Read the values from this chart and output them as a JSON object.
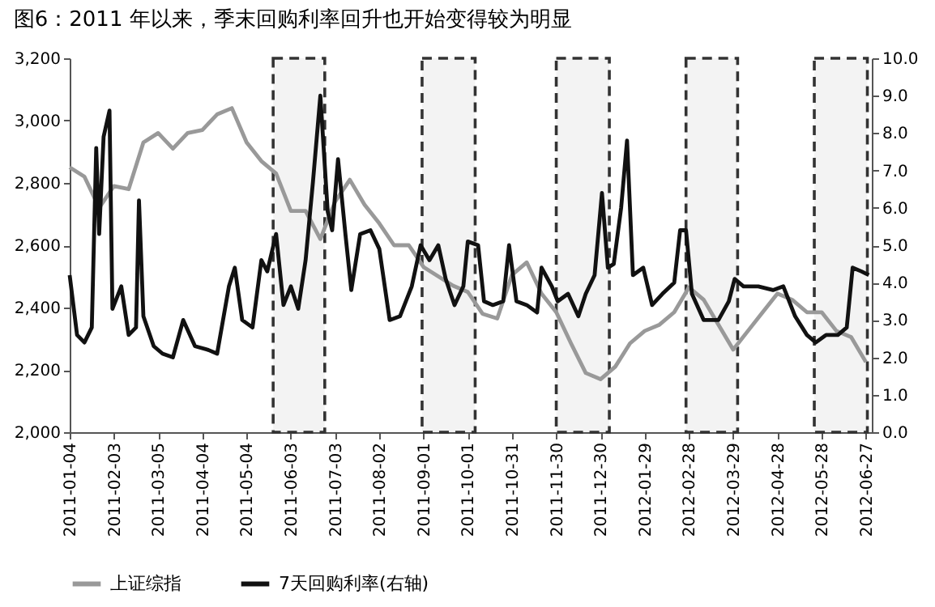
{
  "chart_data": {
    "type": "line",
    "title": "图6：2011 年以来，季末回购利率回升也开始变得较为明显",
    "xlim": [
      "2011-01-04",
      "2012-07-01"
    ],
    "xticks": [
      "2011-01-04",
      "2011-02-03",
      "2011-03-05",
      "2011-04-04",
      "2011-05-04",
      "2011-06-03",
      "2011-07-03",
      "2011-08-02",
      "2011-09-01",
      "2011-10-01",
      "2011-10-31",
      "2011-11-30",
      "2011-12-30",
      "2012-01-29",
      "2012-02-28",
      "2012-03-29",
      "2012-04-28",
      "2012-05-28",
      "2012-06-27"
    ],
    "ylim": [
      2000,
      3200
    ],
    "yticks": [
      {
        "value": 2000,
        "label": "2,000"
      },
      {
        "value": 2200,
        "label": "2,200"
      },
      {
        "value": 2400,
        "label": "2,400"
      },
      {
        "value": 2600,
        "label": "2,600"
      },
      {
        "value": 2800,
        "label": "2,800"
      },
      {
        "value": 3000,
        "label": "3,000"
      },
      {
        "value": 3200,
        "label": "3,200"
      }
    ],
    "y2lim": [
      0,
      10
    ],
    "y2ticks": [
      {
        "value": 0,
        "label": "0.0"
      },
      {
        "value": 1,
        "label": "1.0"
      },
      {
        "value": 2,
        "label": "2.0"
      },
      {
        "value": 3,
        "label": "3.0"
      },
      {
        "value": 4,
        "label": "4.0"
      },
      {
        "value": 5,
        "label": "5.0"
      },
      {
        "value": 6,
        "label": "6.0"
      },
      {
        "value": 7,
        "label": "7.0"
      },
      {
        "value": 8,
        "label": "8.0"
      },
      {
        "value": 9,
        "label": "9.0"
      },
      {
        "value": 10,
        "label": "10.0"
      }
    ],
    "legend": "bottom",
    "grid": false,
    "marker": "none",
    "line_style": "solid",
    "bands": [
      {
        "axis": "x",
        "from": "2011-05-22",
        "to": "2011-06-26",
        "color": "#333333"
      },
      {
        "axis": "x",
        "from": "2011-08-31",
        "to": "2011-10-06",
        "color": "#333333"
      },
      {
        "axis": "x",
        "from": "2011-11-30",
        "to": "2012-01-05",
        "color": "#333333"
      },
      {
        "axis": "x",
        "from": "2012-02-26",
        "to": "2012-04-01",
        "color": "#333333"
      },
      {
        "axis": "x",
        "from": "2012-05-23",
        "to": "2012-06-28",
        "color": "#333333"
      }
    ],
    "series": [
      {
        "name": "上证综指",
        "color": "#999999",
        "x": [
          "2011-01-04",
          "2011-01-14",
          "2011-01-24",
          "2011-02-03",
          "2011-02-13",
          "2011-02-23",
          "2011-03-05",
          "2011-03-15",
          "2011-03-25",
          "2011-04-04",
          "2011-04-14",
          "2011-04-24",
          "2011-05-04",
          "2011-05-14",
          "2011-05-24",
          "2011-06-03",
          "2011-06-13",
          "2011-06-23",
          "2011-07-03",
          "2011-07-13",
          "2011-07-23",
          "2011-08-02",
          "2011-08-12",
          "2011-08-22",
          "2011-09-01",
          "2011-09-11",
          "2011-09-21",
          "2011-10-01",
          "2011-10-11",
          "2011-10-21",
          "2011-10-31",
          "2011-11-10",
          "2011-11-20",
          "2011-11-30",
          "2011-12-10",
          "2011-12-20",
          "2011-12-30",
          "2012-01-09",
          "2012-01-19",
          "2012-01-29",
          "2012-02-08",
          "2012-02-18",
          "2012-02-28",
          "2012-03-09",
          "2012-03-19",
          "2012-03-29",
          "2012-04-08",
          "2012-04-18",
          "2012-04-28",
          "2012-05-08",
          "2012-05-18",
          "2012-05-28",
          "2012-06-07",
          "2012-06-17",
          "2012-06-27"
        ],
        "values": [
          2850,
          2820,
          2720,
          2790,
          2780,
          2930,
          2960,
          2910,
          2960,
          2970,
          3020,
          3040,
          2930,
          2870,
          2830,
          2710,
          2710,
          2620,
          2740,
          2810,
          2730,
          2670,
          2600,
          2600,
          2530,
          2500,
          2470,
          2450,
          2380,
          2365,
          2505,
          2545,
          2445,
          2385,
          2285,
          2190,
          2170,
          2210,
          2285,
          2325,
          2345,
          2385,
          2465,
          2425,
          2345,
          2265,
          2325,
          2385,
          2445,
          2425,
          2385,
          2385,
          2325,
          2305,
          2225
        ]
      },
      {
        "name": "7天回购利率(右轴)",
        "color": "#111111",
        "axis": "y2",
        "x": [
          "2011-01-04",
          "2011-01-09",
          "2011-01-14",
          "2011-01-19",
          "2011-01-22",
          "2011-01-24",
          "2011-01-27",
          "2011-01-31",
          "2011-02-02",
          "2011-02-08",
          "2011-02-13",
          "2011-02-18",
          "2011-02-20",
          "2011-02-23",
          "2011-03-02",
          "2011-03-08",
          "2011-03-15",
          "2011-03-22",
          "2011-03-30",
          "2011-04-08",
          "2011-04-14",
          "2011-04-22",
          "2011-04-26",
          "2011-05-01",
          "2011-05-08",
          "2011-05-14",
          "2011-05-18",
          "2011-05-24",
          "2011-05-29",
          "2011-06-03",
          "2011-06-08",
          "2011-06-13",
          "2011-06-18",
          "2011-06-23",
          "2011-06-28",
          "2011-07-01",
          "2011-07-05",
          "2011-07-10",
          "2011-07-14",
          "2011-07-20",
          "2011-07-27",
          "2011-08-02",
          "2011-08-09",
          "2011-08-16",
          "2011-08-24",
          "2011-08-30",
          "2011-09-05",
          "2011-09-11",
          "2011-09-16",
          "2011-09-22",
          "2011-09-28",
          "2011-10-01",
          "2011-10-08",
          "2011-10-12",
          "2011-10-18",
          "2011-10-25",
          "2011-10-29",
          "2011-11-03",
          "2011-11-10",
          "2011-11-17",
          "2011-11-20",
          "2011-11-27",
          "2011-12-01",
          "2011-12-08",
          "2011-12-15",
          "2011-12-20",
          "2011-12-26",
          "2011-12-31",
          "2012-01-04",
          "2012-01-08",
          "2012-01-13",
          "2012-01-17",
          "2012-01-21",
          "2012-01-28",
          "2012-02-03",
          "2012-02-10",
          "2012-02-18",
          "2012-02-22",
          "2012-02-26",
          "2012-03-01",
          "2012-03-09",
          "2012-03-19",
          "2012-03-26",
          "2012-03-30",
          "2012-04-05",
          "2012-04-15",
          "2012-04-25",
          "2012-05-02",
          "2012-05-10",
          "2012-05-18",
          "2012-05-24",
          "2012-05-31",
          "2012-06-08",
          "2012-06-14",
          "2012-06-18",
          "2012-06-24",
          "2012-06-29"
        ],
        "values": [
          4.2,
          2.6,
          2.4,
          2.8,
          7.6,
          5.3,
          7.9,
          8.6,
          3.3,
          3.9,
          2.6,
          2.8,
          6.2,
          3.1,
          2.3,
          2.1,
          2.0,
          3.0,
          2.3,
          2.2,
          2.1,
          3.9,
          4.4,
          3.0,
          2.8,
          4.6,
          4.3,
          5.3,
          3.4,
          3.9,
          3.3,
          4.6,
          6.7,
          9.0,
          5.9,
          5.4,
          7.3,
          5.3,
          3.8,
          5.3,
          5.4,
          4.9,
          3.0,
          3.1,
          3.9,
          5.0,
          4.6,
          5.0,
          4.1,
          3.4,
          3.9,
          5.1,
          5.0,
          3.5,
          3.4,
          3.5,
          5.0,
          3.5,
          3.4,
          3.2,
          4.4,
          3.9,
          3.5,
          3.7,
          3.1,
          3.7,
          4.2,
          6.4,
          4.4,
          4.5,
          6.0,
          7.8,
          4.2,
          4.4,
          3.4,
          3.7,
          4.0,
          5.4,
          5.4,
          3.7,
          3.0,
          3.0,
          3.5,
          4.1,
          3.9,
          3.9,
          3.8,
          3.9,
          3.1,
          2.6,
          2.4,
          2.6,
          2.6,
          2.8,
          4.4,
          4.3,
          4.2
        ]
      }
    ]
  }
}
